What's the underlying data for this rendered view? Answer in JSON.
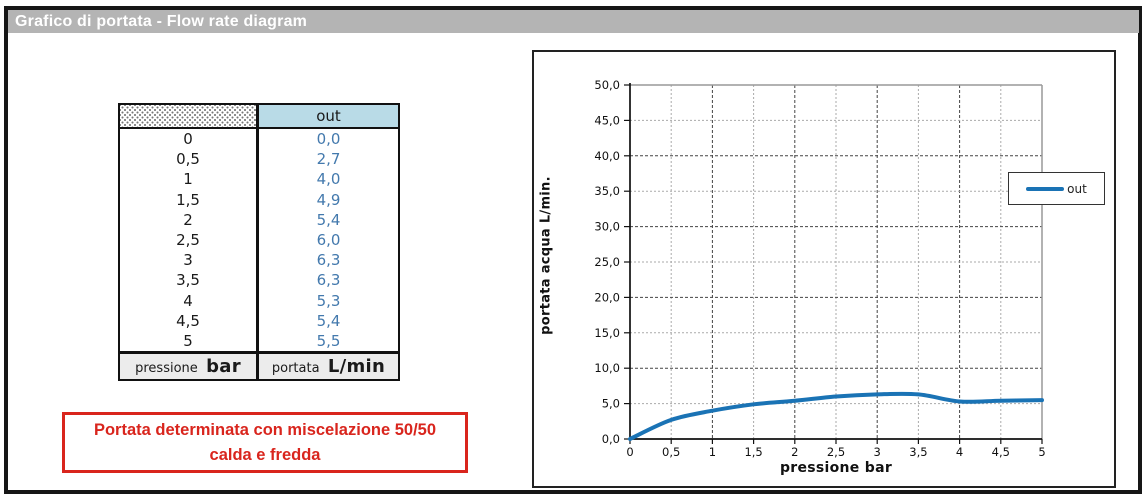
{
  "title_bar": {
    "title": "Grafico di portata - Flow rate diagram"
  },
  "table": {
    "header": {
      "corner": "",
      "out_label": "out"
    },
    "rows": [
      {
        "pressione": "0",
        "out": "0,0"
      },
      {
        "pressione": "0,5",
        "out": "2,7"
      },
      {
        "pressione": "1",
        "out": "4,0"
      },
      {
        "pressione": "1,5",
        "out": "4,9"
      },
      {
        "pressione": "2",
        "out": "5,4"
      },
      {
        "pressione": "2,5",
        "out": "6,0"
      },
      {
        "pressione": "3",
        "out": "6,3"
      },
      {
        "pressione": "3,5",
        "out": "6,3"
      },
      {
        "pressione": "4",
        "out": "5,3"
      },
      {
        "pressione": "4,5",
        "out": "5,4"
      },
      {
        "pressione": "5",
        "out": "5,5"
      }
    ],
    "footer": {
      "left_label": "pressione",
      "left_unit": "bar",
      "right_label": "portata",
      "right_unit": "L/min"
    }
  },
  "note": {
    "line1": "Portata determinata con miscelazione 50/50",
    "line2": "calda e fredda"
  },
  "chart_data": {
    "type": "line",
    "x": [
      0,
      0.5,
      1,
      1.5,
      2,
      2.5,
      3,
      3.5,
      4,
      4.5,
      5
    ],
    "series": [
      {
        "name": "out",
        "values": [
          0,
          2.7,
          4.0,
          4.9,
          5.4,
          6.0,
          6.3,
          6.3,
          5.3,
          5.4,
          5.5
        ]
      }
    ],
    "title": "",
    "xlabel": "pressione bar",
    "ylabel": "portata acqua  L/min.",
    "xlim": [
      0,
      5
    ],
    "ylim": [
      0,
      50
    ],
    "x_tick_step": 0.5,
    "y_tick_step": 5,
    "x_tick_labels": [
      "0",
      "0,5",
      "1",
      "1,5",
      "2",
      "2,5",
      "3",
      "3,5",
      "4",
      "4,5",
      "5"
    ],
    "y_tick_labels": [
      "0,0",
      "5,0",
      "10,0",
      "15,0",
      "20,0",
      "25,0",
      "30,0",
      "35,0",
      "40,0",
      "45,0",
      "50,0"
    ],
    "grid": true,
    "smoothed": true,
    "legend": {
      "position": "right-inside",
      "entries": [
        "out"
      ]
    },
    "line_color": "#1a73b5"
  },
  "colors": {
    "titlebar_bg": "#b4b4b4",
    "titlebar_text": "#ffffff",
    "table_out_header_bg": "#b9dbe7",
    "table_footer_bg": "#ececec",
    "table_value_text": "#4379ad",
    "note_red": "#d9251d",
    "line_blue": "#1a73b5",
    "grid_major": "#444444",
    "grid_minor": "#aaaaaa"
  }
}
